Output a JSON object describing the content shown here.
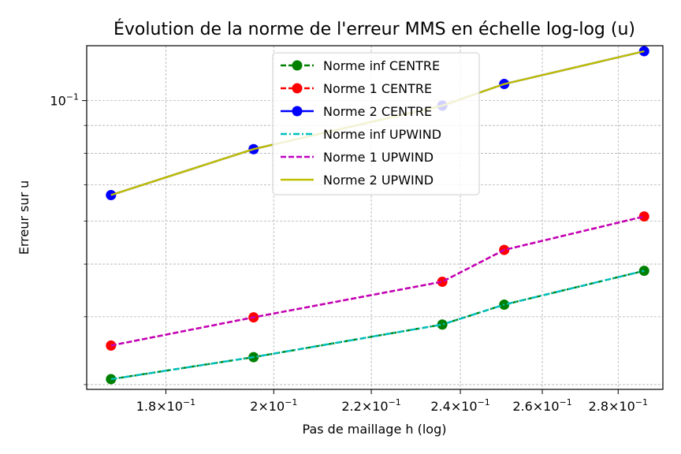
{
  "chart_data": {
    "type": "line",
    "title": "Évolution de la norme de l'erreur MMS en échelle log-log (u)",
    "xlabel": "Pas de maillage h (log)",
    "ylabel": "Erreur sur u",
    "xscale": "log",
    "yscale": "log",
    "xlim": [
      0.1666,
      0.2925
    ],
    "ylim": [
      0.0294,
      0.1262
    ],
    "grid": true,
    "legend_position": "top-center",
    "x": [
      0.1706,
      0.1961,
      0.2358,
      0.2505,
      0.2872
    ],
    "x_ticks": [
      {
        "value": 0.18,
        "mantissa": "1.8",
        "base": "10",
        "exp": "−1"
      },
      {
        "value": 0.2,
        "mantissa": "2",
        "base": "10",
        "exp": "−1"
      },
      {
        "value": 0.22,
        "mantissa": "2.2",
        "base": "10",
        "exp": "−1"
      },
      {
        "value": 0.24,
        "mantissa": "2.4",
        "base": "10",
        "exp": "−1"
      },
      {
        "value": 0.26,
        "mantissa": "2.6",
        "base": "10",
        "exp": "−1"
      },
      {
        "value": 0.28,
        "mantissa": "2.8",
        "base": "10",
        "exp": "−1"
      }
    ],
    "y_ticks": [
      {
        "value": 0.1,
        "base": "10",
        "exp": "−1"
      }
    ],
    "y_minor_ticks": [
      0.03,
      0.04,
      0.05,
      0.06,
      0.07,
      0.08,
      0.09
    ],
    "series": [
      {
        "name": "Norme inf CENTRE",
        "color": "#008000",
        "style": "dashed-marker",
        "marker": true,
        "values": [
          0.0307,
          0.0337,
          0.0387,
          0.0421,
          0.0486
        ]
      },
      {
        "name": "Norme 1 CENTRE",
        "color": "#ff0000",
        "style": "dashed-marker",
        "marker": true,
        "values": [
          0.0354,
          0.0399,
          0.0464,
          0.0531,
          0.0612
        ]
      },
      {
        "name": "Norme 2 CENTRE",
        "color": "#0000ff",
        "style": "solid-marker",
        "marker": true,
        "values": [
          0.067,
          0.0814,
          0.0979,
          0.1073,
          0.1233
        ]
      },
      {
        "name": "Norme inf UPWIND",
        "color": "#00bfbf",
        "style": "dashdot",
        "marker": false,
        "values": [
          0.0307,
          0.0337,
          0.0387,
          0.0421,
          0.0486
        ]
      },
      {
        "name": "Norme 1 UPWIND",
        "color": "#bf00bf",
        "style": "dashed",
        "marker": false,
        "values": [
          0.0354,
          0.0399,
          0.0464,
          0.0531,
          0.0612
        ]
      },
      {
        "name": "Norme 2 UPWIND",
        "color": "#bfbf00",
        "style": "solid",
        "marker": false,
        "values": [
          0.067,
          0.0814,
          0.0979,
          0.1073,
          0.1233
        ]
      }
    ]
  }
}
